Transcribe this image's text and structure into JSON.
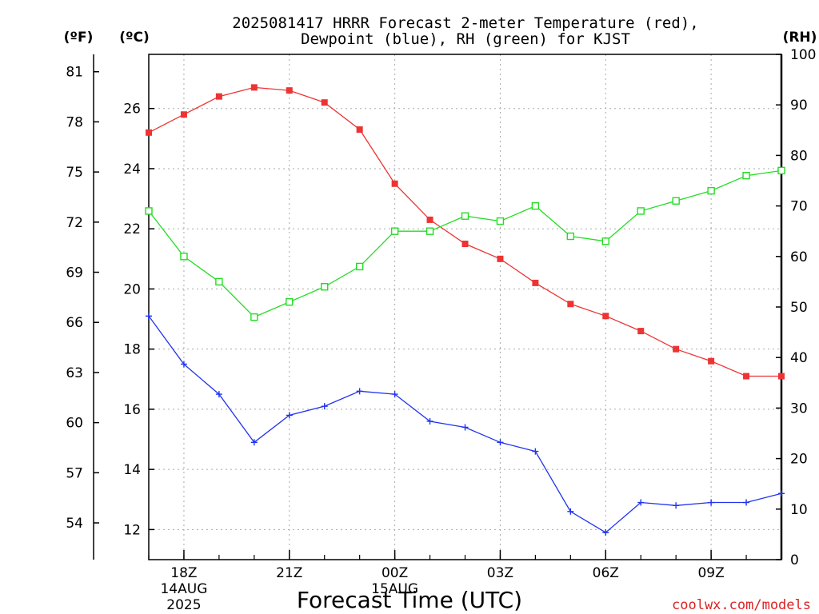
{
  "title": {
    "line1": "2025081417 HRRR Forecast 2-meter Temperature (red),",
    "line2": "Dewpoint (blue), RH (green) for KJST"
  },
  "units": {
    "fahrenheit": "(ºF)",
    "celsius": "(ºC)",
    "rh": "(RH)"
  },
  "credit": "coolwx.com/models",
  "colors": {
    "temperature": "#ee3333",
    "dewpoint": "#2233ee",
    "rh": "#22dd22",
    "credit": "#dd2222",
    "grid": "#aaaaaa"
  },
  "chart_data": {
    "type": "line",
    "xlabel": "Forecast Time (UTC)",
    "x_ticks": [
      {
        "label": "18Z",
        "sub1": "14AUG",
        "sub2": "2025",
        "hour": 1
      },
      {
        "label": "21Z",
        "sub1": "",
        "sub2": "",
        "hour": 4
      },
      {
        "label": "00Z",
        "sub1": "15AUG",
        "sub2": "",
        "hour": 7
      },
      {
        "label": "03Z",
        "sub1": "",
        "sub2": "",
        "hour": 10
      },
      {
        "label": "06Z",
        "sub1": "",
        "sub2": "",
        "hour": 13
      },
      {
        "label": "09Z",
        "sub1": "",
        "sub2": "",
        "hour": 16
      }
    ],
    "x_hours": [
      0,
      1,
      2,
      3,
      4,
      5,
      6,
      7,
      8,
      9,
      10,
      11,
      12,
      13,
      14,
      15,
      16,
      17,
      18
    ],
    "x_times": [
      "17Z",
      "18Z",
      "19Z",
      "20Z",
      "21Z",
      "22Z",
      "23Z",
      "00Z",
      "01Z",
      "02Z",
      "03Z",
      "04Z",
      "05Z",
      "06Z",
      "07Z",
      "08Z",
      "09Z",
      "10Z",
      "11Z"
    ],
    "xlim": [
      0,
      18
    ],
    "celsius_axis": {
      "ylim": [
        11,
        27.8
      ],
      "ticks": [
        12,
        14,
        16,
        18,
        20,
        22,
        24,
        26
      ]
    },
    "fahrenheit_axis": {
      "ticks": [
        54,
        57,
        60,
        63,
        66,
        69,
        72,
        75,
        78,
        81
      ]
    },
    "rh_axis": {
      "ylim": [
        0,
        100
      ],
      "ticks": [
        0,
        10,
        20,
        30,
        40,
        50,
        60,
        70,
        80,
        90,
        100
      ]
    },
    "grid": true,
    "series": [
      {
        "name": "Temperature",
        "axis": "celsius",
        "marker": "filled-square",
        "values": [
          25.2,
          25.8,
          26.4,
          26.7,
          26.6,
          26.2,
          25.3,
          23.5,
          22.3,
          21.5,
          21.0,
          20.2,
          19.5,
          19.1,
          18.6,
          18.0,
          17.6,
          17.1,
          17.1
        ]
      },
      {
        "name": "Dewpoint",
        "axis": "celsius",
        "marker": "plus",
        "values": [
          19.1,
          17.5,
          16.5,
          14.9,
          15.8,
          16.1,
          16.6,
          16.5,
          15.6,
          15.4,
          14.9,
          14.6,
          12.6,
          11.9,
          12.9,
          12.8,
          12.9,
          12.9,
          13.2
        ]
      },
      {
        "name": "RH",
        "axis": "rh",
        "marker": "open-square",
        "values": [
          69,
          60,
          55,
          48,
          51,
          54,
          58,
          65,
          65,
          68,
          67,
          70,
          64,
          63,
          69,
          71,
          73,
          76,
          77
        ]
      }
    ]
  }
}
